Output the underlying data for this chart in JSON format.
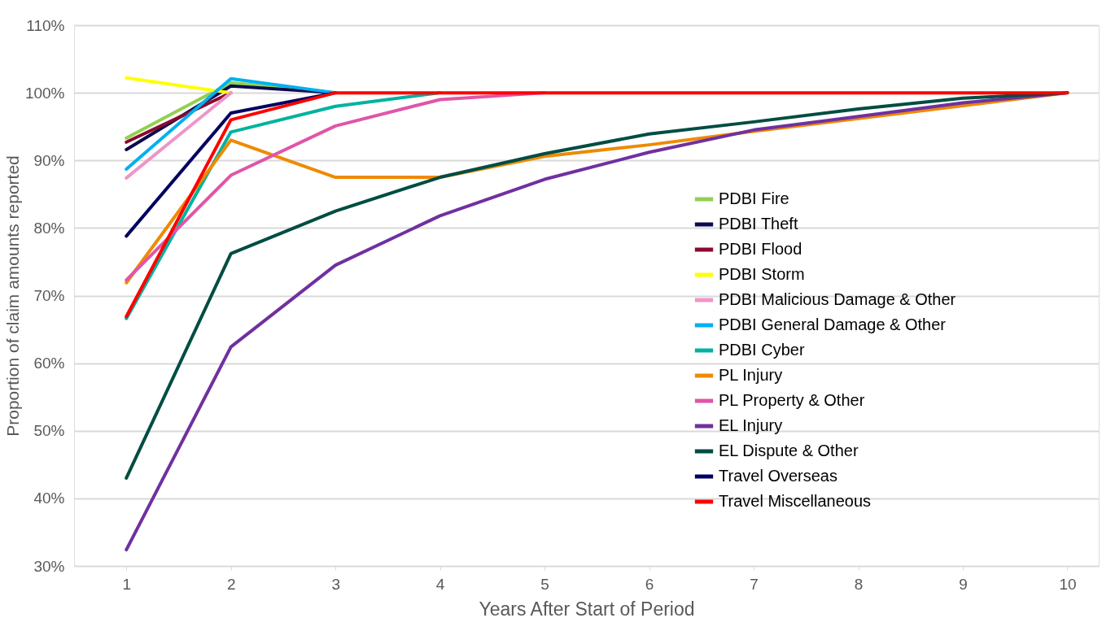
{
  "chart_data": {
    "type": "line",
    "xlabel": "Years After Start of Period",
    "ylabel": "Proportion of claim amounts reported",
    "categories": [
      "1",
      "2",
      "3",
      "4",
      "5",
      "6",
      "7",
      "8",
      "9",
      "10"
    ],
    "series": [
      {
        "name": "PDBI Fire",
        "color": "#92d050",
        "values": [
          93.3,
          101.5,
          100,
          null,
          null,
          null,
          null,
          null,
          null,
          null
        ]
      },
      {
        "name": "PDBI Theft",
        "color": "#0c0a4e",
        "values": [
          91.6,
          101,
          100,
          null,
          null,
          null,
          null,
          null,
          null,
          null
        ]
      },
      {
        "name": "PDBI Flood",
        "color": "#8b0a2e",
        "values": [
          92.7,
          100,
          null,
          null,
          null,
          null,
          null,
          null,
          null,
          null
        ]
      },
      {
        "name": "PDBI Storm",
        "color": "#ffff00",
        "values": [
          102.2,
          100,
          null,
          null,
          null,
          null,
          null,
          null,
          null,
          null
        ]
      },
      {
        "name": "PDBI Malicious Damage & Other",
        "color": "#ee95c8",
        "values": [
          87.4,
          100,
          null,
          null,
          null,
          null,
          null,
          null,
          null,
          null
        ]
      },
      {
        "name": "PDBI General Damage & Other",
        "color": "#00b0f0",
        "values": [
          88.7,
          102.1,
          100,
          null,
          null,
          null,
          null,
          null,
          null,
          null
        ]
      },
      {
        "name": "PDBI Cyber",
        "color": "#00b2a0",
        "values": [
          66.6,
          94.2,
          98,
          100,
          null,
          null,
          null,
          null,
          null,
          null
        ]
      },
      {
        "name": "PL Injury",
        "color": "#ee8a00",
        "values": [
          71.9,
          93,
          87.5,
          87.5,
          90.6,
          92.3,
          94.3,
          96.2,
          98.1,
          100
        ]
      },
      {
        "name": "PL Property & Other",
        "color": "#e055a8",
        "values": [
          72.3,
          87.8,
          95.1,
          99,
          100,
          null,
          null,
          null,
          null,
          null
        ]
      },
      {
        "name": "EL Injury",
        "color": "#7030a0",
        "values": [
          32.4,
          62.4,
          74.5,
          81.8,
          87.2,
          91.2,
          94.5,
          96.5,
          98.5,
          100
        ]
      },
      {
        "name": "EL Dispute & Other",
        "color": "#004d42",
        "values": [
          43,
          76.2,
          82.5,
          87.5,
          91,
          93.9,
          95.7,
          97.6,
          99.2,
          100
        ]
      },
      {
        "name": "Travel Overseas",
        "color": "#000060",
        "values": [
          78.8,
          97,
          100,
          null,
          null,
          null,
          null,
          null,
          null,
          null
        ]
      },
      {
        "name": "Travel Miscellaneous",
        "color": "#ff0000",
        "values": [
          66.9,
          96,
          100,
          100,
          100,
          100,
          100,
          100,
          100,
          100
        ]
      }
    ],
    "ylim": [
      30,
      110
    ],
    "yticks": [
      {
        "value": 30,
        "label": "30%"
      },
      {
        "value": 40,
        "label": "40%"
      },
      {
        "value": 50,
        "label": "50%"
      },
      {
        "value": 60,
        "label": "60%"
      },
      {
        "value": 70,
        "label": "70%"
      },
      {
        "value": 80,
        "label": "80%"
      },
      {
        "value": 90,
        "label": "90%"
      },
      {
        "value": 100,
        "label": "100%"
      },
      {
        "value": 110,
        "label": "110%"
      }
    ],
    "grid": "y",
    "legend": "right",
    "marker": "none",
    "line_style": "solid"
  }
}
